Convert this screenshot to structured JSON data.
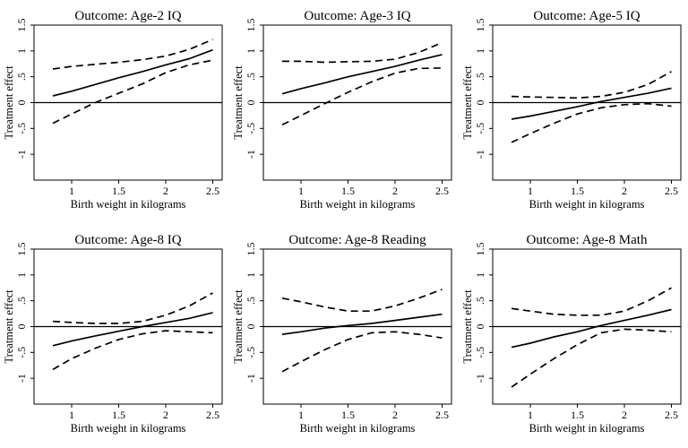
{
  "chart_data": [
    {
      "type": "line",
      "title": "Outcome: Age-2 IQ",
      "xlabel": "Birth weight in kilograms",
      "ylabel": "Treatment effect",
      "xlim": [
        0.6,
        2.6
      ],
      "ylim": [
        -1.5,
        1.5
      ],
      "xticks": [
        "1",
        "1.5",
        "2",
        "2.5"
      ],
      "yticks": [
        "-1",
        "-.5",
        "0",
        ".5",
        "1",
        "1.5"
      ],
      "zero_line": true,
      "series": [
        {
          "style": "solid",
          "x": [
            0.8,
            1.0,
            1.25,
            1.5,
            1.75,
            2.0,
            2.25,
            2.5
          ],
          "y": [
            0.13,
            0.22,
            0.35,
            0.48,
            0.6,
            0.73,
            0.85,
            1.02
          ]
        },
        {
          "style": "dashed",
          "x": [
            0.8,
            1.0,
            1.25,
            1.5,
            1.75,
            2.0,
            2.25,
            2.5
          ],
          "y": [
            0.65,
            0.7,
            0.74,
            0.78,
            0.83,
            0.9,
            1.03,
            1.22
          ]
        },
        {
          "style": "dashed",
          "x": [
            0.8,
            1.0,
            1.25,
            1.5,
            1.75,
            2.0,
            2.25,
            2.5
          ],
          "y": [
            -0.4,
            -0.22,
            0.0,
            0.18,
            0.36,
            0.58,
            0.73,
            0.82
          ]
        }
      ]
    },
    {
      "type": "line",
      "title": "Outcome: Age-3 IQ",
      "xlabel": "Birth weight in kilograms",
      "ylabel": "Treatment effect",
      "xlim": [
        0.6,
        2.6
      ],
      "ylim": [
        -1.5,
        1.5
      ],
      "xticks": [
        "1",
        "1.5",
        "2",
        "2.5"
      ],
      "yticks": [
        "-1",
        "-.5",
        "0",
        ".5",
        "1",
        "1.5"
      ],
      "zero_line": true,
      "series": [
        {
          "style": "solid",
          "x": [
            0.8,
            1.0,
            1.25,
            1.5,
            1.75,
            2.0,
            2.25,
            2.5
          ],
          "y": [
            0.17,
            0.27,
            0.38,
            0.5,
            0.6,
            0.7,
            0.82,
            0.93
          ]
        },
        {
          "style": "dashed",
          "x": [
            0.8,
            1.0,
            1.25,
            1.5,
            1.75,
            2.0,
            2.25,
            2.5
          ],
          "y": [
            0.8,
            0.8,
            0.78,
            0.79,
            0.8,
            0.84,
            0.97,
            1.16
          ]
        },
        {
          "style": "dashed",
          "x": [
            0.8,
            1.0,
            1.25,
            1.5,
            1.75,
            2.0,
            2.25,
            2.5
          ],
          "y": [
            -0.43,
            -0.25,
            -0.02,
            0.2,
            0.4,
            0.57,
            0.66,
            0.67
          ]
        }
      ]
    },
    {
      "type": "line",
      "title": "Outcome: Age-5 IQ",
      "xlabel": "Birth weight in kilograms",
      "ylabel": "Treatment effect",
      "xlim": [
        0.6,
        2.6
      ],
      "ylim": [
        -1.5,
        1.5
      ],
      "xticks": [
        "1",
        "1.5",
        "2",
        "2.5"
      ],
      "yticks": [
        "-1",
        "-.5",
        "0",
        ".5",
        "1",
        "1.5"
      ],
      "zero_line": true,
      "series": [
        {
          "style": "solid",
          "x": [
            0.8,
            1.0,
            1.25,
            1.5,
            1.75,
            2.0,
            2.25,
            2.5
          ],
          "y": [
            -0.32,
            -0.26,
            -0.17,
            -0.08,
            0.02,
            0.1,
            0.18,
            0.28
          ]
        },
        {
          "style": "dashed",
          "x": [
            0.8,
            1.0,
            1.25,
            1.5,
            1.75,
            2.0,
            2.25,
            2.5
          ],
          "y": [
            0.12,
            0.11,
            0.1,
            0.09,
            0.12,
            0.2,
            0.35,
            0.6
          ]
        },
        {
          "style": "dashed",
          "x": [
            0.8,
            1.0,
            1.25,
            1.5,
            1.75,
            2.0,
            2.25,
            2.5
          ],
          "y": [
            -0.77,
            -0.6,
            -0.4,
            -0.22,
            -0.1,
            -0.04,
            -0.02,
            -0.07
          ]
        }
      ]
    },
    {
      "type": "line",
      "title": "Outcome: Age-8 IQ",
      "xlabel": "Birth weight in kilograms",
      "ylabel": "Treatment effect",
      "xlim": [
        0.6,
        2.6
      ],
      "ylim": [
        -1.5,
        1.5
      ],
      "xticks": [
        "1",
        "1.5",
        "2",
        "2.5"
      ],
      "yticks": [
        "-1",
        "-.5",
        "0",
        ".5",
        "1",
        "1.5"
      ],
      "zero_line": true,
      "series": [
        {
          "style": "solid",
          "x": [
            0.8,
            1.0,
            1.25,
            1.5,
            1.75,
            2.0,
            2.25,
            2.5
          ],
          "y": [
            -0.37,
            -0.28,
            -0.18,
            -0.09,
            0.0,
            0.08,
            0.16,
            0.27
          ]
        },
        {
          "style": "dashed",
          "x": [
            0.8,
            1.0,
            1.25,
            1.5,
            1.75,
            2.0,
            2.25,
            2.5
          ],
          "y": [
            0.1,
            0.08,
            0.06,
            0.06,
            0.1,
            0.22,
            0.4,
            0.65
          ]
        },
        {
          "style": "dashed",
          "x": [
            0.8,
            1.0,
            1.25,
            1.5,
            1.75,
            2.0,
            2.25,
            2.5
          ],
          "y": [
            -0.83,
            -0.62,
            -0.42,
            -0.25,
            -0.14,
            -0.08,
            -0.1,
            -0.12
          ]
        }
      ]
    },
    {
      "type": "line",
      "title": "Outcome: Age-8 Reading",
      "xlabel": "Birth weight in kilograms",
      "ylabel": "Treatment effect",
      "xlim": [
        0.6,
        2.6
      ],
      "ylim": [
        -1.5,
        1.5
      ],
      "xticks": [
        "1",
        "1.5",
        "2",
        "2.5"
      ],
      "yticks": [
        "-1",
        "-.5",
        "0",
        ".5",
        "1",
        "1.5"
      ],
      "zero_line": true,
      "series": [
        {
          "style": "solid",
          "x": [
            0.8,
            1.0,
            1.25,
            1.5,
            1.75,
            2.0,
            2.25,
            2.5
          ],
          "y": [
            -0.15,
            -0.1,
            -0.03,
            0.02,
            0.06,
            0.12,
            0.18,
            0.24
          ]
        },
        {
          "style": "dashed",
          "x": [
            0.8,
            1.0,
            1.25,
            1.5,
            1.75,
            2.0,
            2.25,
            2.5
          ],
          "y": [
            0.55,
            0.48,
            0.38,
            0.3,
            0.3,
            0.4,
            0.55,
            0.72
          ]
        },
        {
          "style": "dashed",
          "x": [
            0.8,
            1.0,
            1.25,
            1.5,
            1.75,
            2.0,
            2.25,
            2.5
          ],
          "y": [
            -0.87,
            -0.68,
            -0.45,
            -0.25,
            -0.12,
            -0.1,
            -0.15,
            -0.22
          ]
        }
      ]
    },
    {
      "type": "line",
      "title": "Outcome: Age-8 Math",
      "xlabel": "Birth weight in kilograms",
      "ylabel": "Treatment effect",
      "xlim": [
        0.6,
        2.6
      ],
      "ylim": [
        -1.5,
        1.5
      ],
      "xticks": [
        "1",
        "1.5",
        "2",
        "2.5"
      ],
      "yticks": [
        "-1",
        "-.5",
        "0",
        ".5",
        "1",
        "1.5"
      ],
      "zero_line": true,
      "series": [
        {
          "style": "solid",
          "x": [
            0.8,
            1.0,
            1.25,
            1.5,
            1.75,
            2.0,
            2.25,
            2.5
          ],
          "y": [
            -0.4,
            -0.32,
            -0.2,
            -0.1,
            0.02,
            0.12,
            0.22,
            0.33
          ]
        },
        {
          "style": "dashed",
          "x": [
            0.8,
            1.0,
            1.25,
            1.5,
            1.75,
            2.0,
            2.25,
            2.5
          ],
          "y": [
            0.35,
            0.3,
            0.24,
            0.22,
            0.22,
            0.3,
            0.5,
            0.75
          ]
        },
        {
          "style": "dashed",
          "x": [
            0.8,
            1.0,
            1.25,
            1.5,
            1.75,
            2.0,
            2.25,
            2.5
          ],
          "y": [
            -1.17,
            -0.92,
            -0.62,
            -0.35,
            -0.12,
            -0.05,
            -0.07,
            -0.1
          ]
        }
      ]
    }
  ]
}
